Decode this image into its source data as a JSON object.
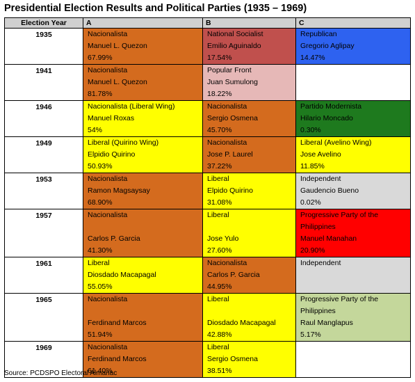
{
  "title": "Presidential Election Results and Political Parties (1935 – 1969)",
  "headers": {
    "year": "Election Year",
    "a": "A",
    "b": "B",
    "c": "C"
  },
  "source": "Source: PCDSPO Electoral Almanac",
  "colors": {
    "orange": "#d46b1e",
    "brickred": "#c0504d",
    "pink": "#e6b8b7",
    "yellow": "#ffff00",
    "green": "#1e7a1e",
    "blue": "#2e62f0",
    "red": "#ff0000",
    "grey": "#d9d9d9",
    "sage": "#c4d79b",
    "white": "#ffffff",
    "header_grey": "#d0d0d0"
  },
  "rows": [
    {
      "year": "1935",
      "a": {
        "color": "orange",
        "lines": [
          "Nacionalista",
          "Manuel L. Quezon",
          "67.99%"
        ]
      },
      "b": {
        "color": "brickred",
        "lines": [
          "National Socialist",
          "Emilio Aguinaldo",
          "17.54%"
        ]
      },
      "c": {
        "color": "blue",
        "lines": [
          "Republican",
          "Gregorio Aglipay",
          "14.47%"
        ]
      }
    },
    {
      "year": "1941",
      "a": {
        "color": "orange",
        "lines": [
          "Nacionalista",
          "Manuel L. Quezon",
          "81.78%"
        ]
      },
      "b": {
        "color": "pink",
        "lines": [
          "Popular Front",
          "Juan Sumulong",
          "18.22%"
        ]
      },
      "c": {
        "color": "white",
        "lines": []
      }
    },
    {
      "year": "1946",
      "a": {
        "color": "yellow",
        "lines": [
          "Nacionalista (Liberal Wing)",
          "Manuel Roxas",
          "54%"
        ]
      },
      "b": {
        "color": "orange",
        "lines": [
          "Nacionalista",
          "Sergio Osmena",
          "45.70%"
        ]
      },
      "c": {
        "color": "green",
        "lines": [
          "Partido Modernista",
          "Hilario Moncado",
          "0.30%"
        ]
      }
    },
    {
      "year": "1949",
      "a": {
        "color": "yellow",
        "lines": [
          "Liberal (Quirino Wing)",
          "Elpidio Quirino",
          "50.93%"
        ]
      },
      "b": {
        "color": "orange",
        "lines": [
          "Nacionalista",
          "Jose P. Laurel",
          "37.22%"
        ]
      },
      "c": {
        "color": "yellow",
        "lines": [
          "Liberal (Avelino Wing)",
          "Jose Avelino",
          "11.85%"
        ]
      }
    },
    {
      "year": "1953",
      "a": {
        "color": "orange",
        "lines": [
          "Nacionalista",
          "Ramon Magsaysay",
          "68.90%"
        ]
      },
      "b": {
        "color": "yellow",
        "lines": [
          "Liberal",
          "Elpido Quirino",
          "31.08%"
        ]
      },
      "c": {
        "color": "grey",
        "lines": [
          "Independent",
          "Gaudencio Bueno",
          "0.02%"
        ]
      }
    },
    {
      "year": "1957",
      "a": {
        "color": "orange",
        "lines": [
          "Nacionalista",
          "",
          "Carlos P. Garcia",
          "41.30%"
        ]
      },
      "b": {
        "color": "yellow",
        "lines": [
          "Liberal",
          "",
          "Jose Yulo",
          "27.60%"
        ]
      },
      "c": {
        "color": "red",
        "lines": [
          "Progressive Party of the",
          "Philippines",
          "Manuel Manahan",
          "20.90%"
        ]
      }
    },
    {
      "year": "1961",
      "a": {
        "color": "yellow",
        "lines": [
          "Liberal",
          "Diosdado Macapagal",
          "55.05%"
        ]
      },
      "b": {
        "color": "orange",
        "lines": [
          "Nacionalista",
          "Carlos P. Garcia",
          "44.95%"
        ]
      },
      "c": {
        "color": "grey",
        "lines": [
          "Independent"
        ]
      }
    },
    {
      "year": "1965",
      "a": {
        "color": "orange",
        "lines": [
          "Nacionalista",
          "",
          "Ferdinand Marcos",
          "51.94%"
        ]
      },
      "b": {
        "color": "yellow",
        "lines": [
          "Liberal",
          "",
          "Diosdado Macapagal",
          "42.88%"
        ]
      },
      "c": {
        "color": "sage",
        "lines": [
          "Progressive Party of the",
          "Philippines",
          "Raul Manglapus",
          "5.17%"
        ]
      }
    },
    {
      "year": "1969",
      "a": {
        "color": "orange",
        "lines": [
          "Nacionalista",
          "Ferdinand Marcos",
          "61.40%"
        ]
      },
      "b": {
        "color": "yellow",
        "lines": [
          "Liberal",
          "Sergio Osmena",
          "38.51%"
        ]
      },
      "c": {
        "color": "white",
        "lines": []
      }
    }
  ]
}
